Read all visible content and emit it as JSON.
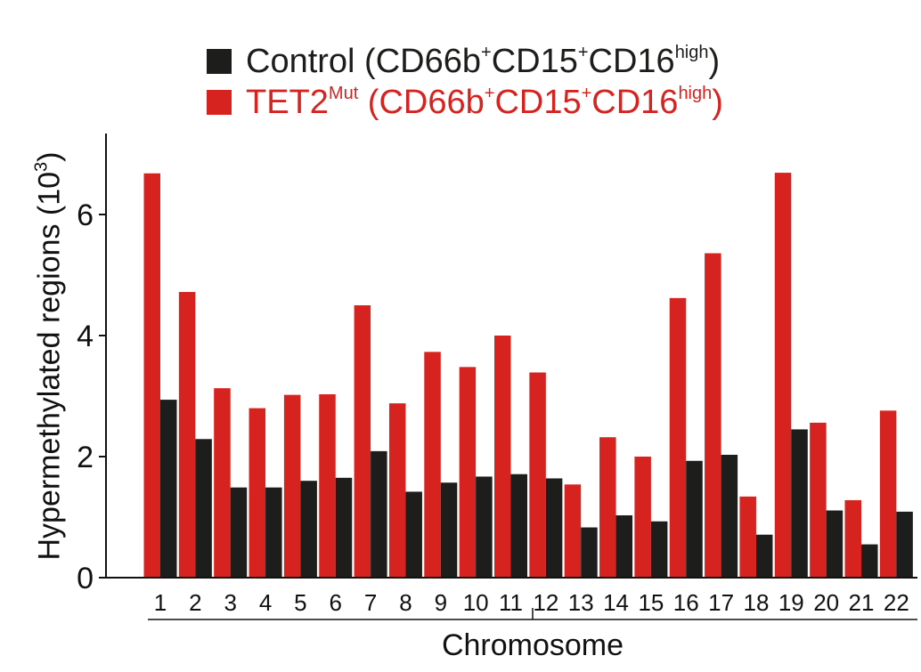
{
  "chart_data": {
    "type": "bar",
    "categories": [
      "1",
      "2",
      "3",
      "4",
      "5",
      "6",
      "7",
      "8",
      "9",
      "10",
      "11",
      "12",
      "13",
      "14",
      "15",
      "16",
      "17",
      "18",
      "19",
      "20",
      "21",
      "22"
    ],
    "series": [
      {
        "name": "TET2Mut (CD66b+CD15+CD16high)",
        "name_parts": {
          "main": "TET2",
          "mut": "Mut",
          "a": " (CD66b",
          "p1": "+",
          "b": "CD15",
          "p2": "+",
          "c": "CD16",
          "high": "high",
          "d": ")"
        },
        "color": "#d7231f",
        "values": [
          6.68,
          4.72,
          3.13,
          2.8,
          3.02,
          3.03,
          4.5,
          2.88,
          3.73,
          3.48,
          4.0,
          3.39,
          1.54,
          2.32,
          2.0,
          4.62,
          5.36,
          1.34,
          6.69,
          2.56,
          1.28,
          2.76
        ]
      },
      {
        "name": "Control (CD66b+CD15+CD16high)",
        "name_parts": {
          "main": "Control (CD66b",
          "p1": "+",
          "b": "CD15",
          "p2": "+",
          "c": "CD16",
          "high": "high",
          "d": ")"
        },
        "color": "#1d1d1b",
        "values": [
          2.94,
          2.29,
          1.49,
          1.49,
          1.6,
          1.65,
          2.09,
          1.42,
          1.57,
          1.67,
          1.71,
          1.64,
          0.83,
          1.03,
          0.93,
          1.93,
          2.03,
          0.71,
          2.45,
          1.11,
          0.55,
          1.09
        ]
      }
    ],
    "ylabel_parts": {
      "main": "Hypermethylated regions (10",
      "exp": "3",
      "end": ")"
    },
    "xlabel": "Chromosome",
    "yticks": [
      0,
      2,
      4,
      6
    ],
    "ylim": [
      0,
      7.3
    ],
    "legend": "top"
  }
}
